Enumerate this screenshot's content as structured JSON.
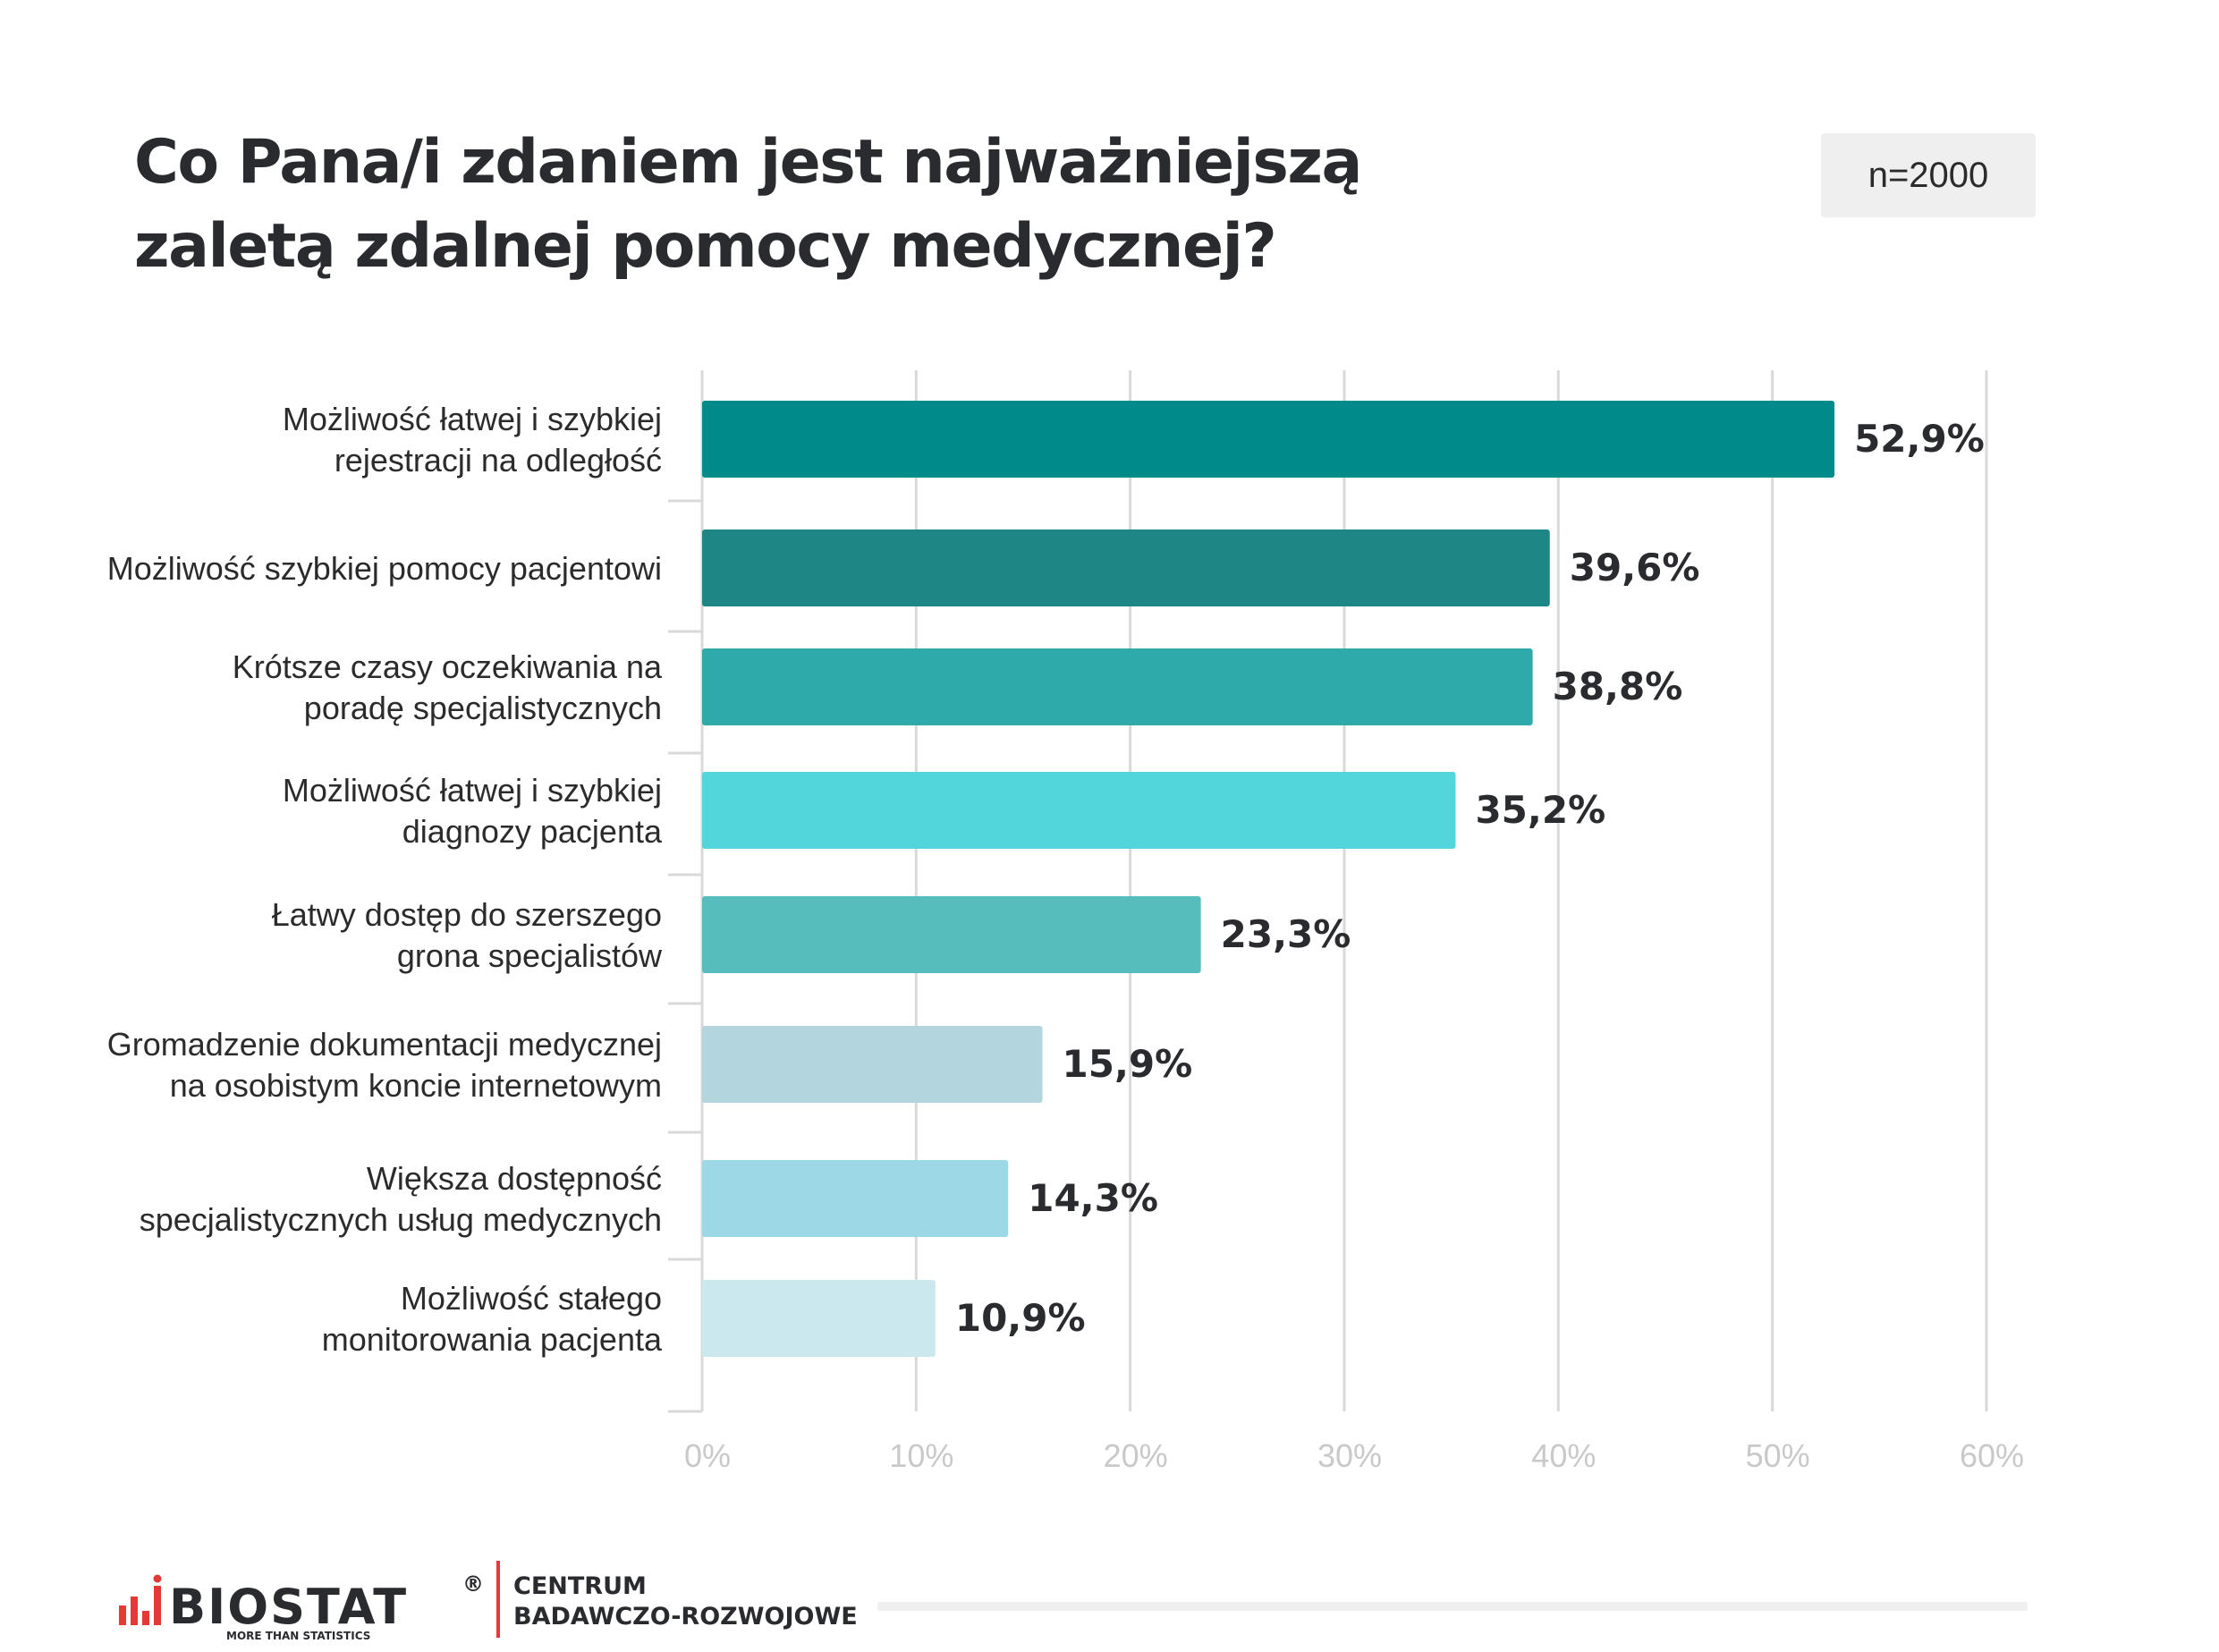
{
  "header": {
    "title_line1": "Co Pana/i zdaniem jest najważniejszą",
    "title_line2": "zaletą zdalnej pomocy medycznej?",
    "sample_size": "n=2000"
  },
  "chart_data": {
    "type": "bar",
    "orientation": "horizontal",
    "title": "Co Pana/i zdaniem jest najważniejszą zaletą zdalnej pomocy medycznej?",
    "categories": [
      [
        "Możliwość łatwej i szybkiej",
        "rejestracji na odległość"
      ],
      [
        "Możliwość szybkiej pomocy pacjentowi"
      ],
      [
        "Krótsze czasy oczekiwania na",
        "poradę specjalistycznych"
      ],
      [
        "Możliwość łatwej i szybkiej",
        "diagnozy pacjenta"
      ],
      [
        "Łatwy dostęp do szerszego",
        "grona specjalistów"
      ],
      [
        "Gromadzenie dokumentacji medycznej",
        "na osobistym koncie internetowym"
      ],
      [
        "Większa dostępność",
        "specjalistycznych usług medycznych"
      ],
      [
        "Możliwość stałego",
        "monitorowania pacjenta"
      ]
    ],
    "values": [
      52.9,
      39.6,
      38.8,
      35.2,
      23.3,
      15.9,
      14.3,
      10.9
    ],
    "value_labels": [
      "52,9%",
      "39,6%",
      "38,8%",
      "35,2%",
      "23,3%",
      "15,9%",
      "14,3%",
      "10,9%"
    ],
    "bar_colors": [
      "#008b8b",
      "#1e8684",
      "#2faaab",
      "#53d6db",
      "#56bcbc",
      "#b3d5dd",
      "#9cd8e6",
      "#cce8ef"
    ],
    "xlim": [
      0,
      60
    ],
    "x_ticks": [
      0,
      10,
      20,
      30,
      40,
      50,
      60
    ],
    "x_tick_labels": [
      "0%",
      "10%",
      "20%",
      "30%",
      "40%",
      "50%",
      "60%"
    ],
    "grid": true,
    "legend": "none"
  },
  "footer": {
    "logo_text": "BIOSTAT",
    "logo_registered": "®",
    "logo_tagline": "MORE THAN STATISTICS",
    "logo_accent_color": "#e53935",
    "division_line1": "CENTRUM",
    "division_line2": "BADAWCZO-ROZWOJOWE"
  }
}
